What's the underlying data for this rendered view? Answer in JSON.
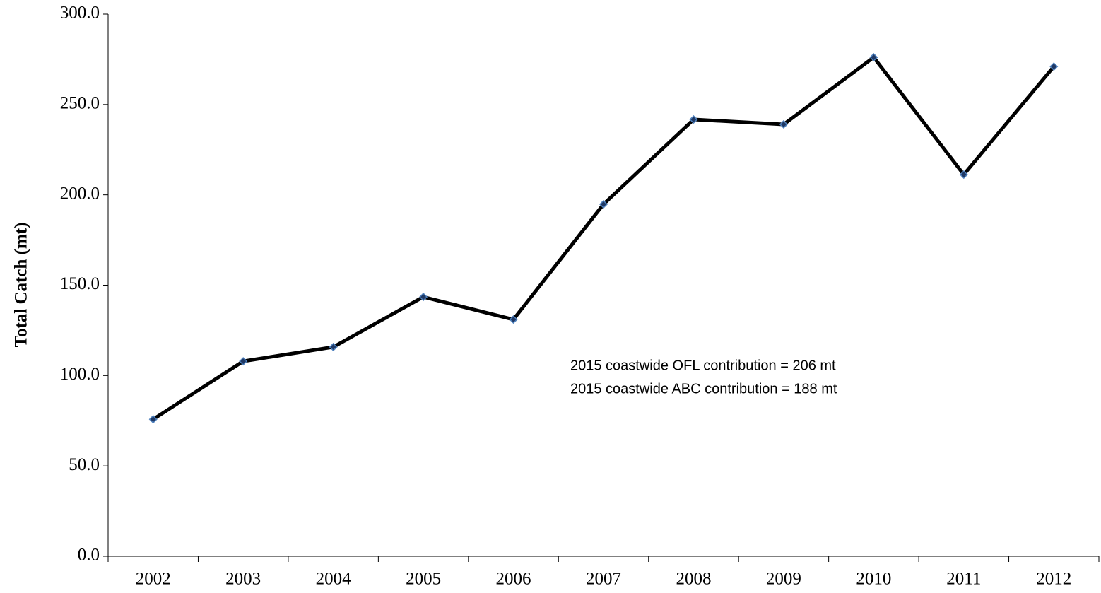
{
  "chart_data": {
    "type": "line",
    "y_label": "Total Catch (mt)",
    "annotations": [
      "2015 coastwide OFL contribution = 206 mt",
      "2015 coastwide ABC contribution = 188 mt"
    ],
    "categories": [
      "2002",
      "2003",
      "2004",
      "2005",
      "2006",
      "2007",
      "2008",
      "2009",
      "2010",
      "2011",
      "2012"
    ],
    "values": [
      75.8,
      107.9,
      115.8,
      143.5,
      131.0,
      194.8,
      241.7,
      239.0,
      276.1,
      211.2,
      271.0
    ],
    "color": "#000000",
    "marker_color": "#1f3864",
    "marker_edge": "#4f81bd",
    "ylim": [
      0,
      300
    ],
    "yticks": [
      {
        "value": 0,
        "label": "0.0"
      },
      {
        "value": 50,
        "label": "50.0"
      },
      {
        "value": 100,
        "label": "100.0"
      },
      {
        "value": 150,
        "label": "150.0"
      },
      {
        "value": 200,
        "label": "200.0"
      },
      {
        "value": 250,
        "label": "250.0"
      },
      {
        "value": 300,
        "label": "300.0"
      }
    ],
    "grid": false
  }
}
